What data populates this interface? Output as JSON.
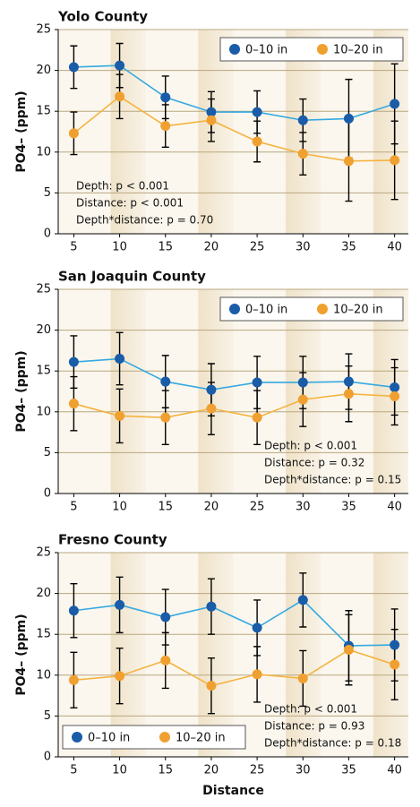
{
  "chart_data": [
    {
      "type": "line",
      "title": "Yolo County",
      "y_label": "PO4– (ppm)",
      "legend": "upper right",
      "annotation_position": "lower left",
      "x": [
        5,
        10,
        15,
        20,
        25,
        30,
        35,
        40
      ],
      "xlim": [
        3.3,
        41.5
      ],
      "xticks": [
        5,
        10,
        15,
        20,
        25,
        30,
        35,
        40
      ],
      "ylim": [
        0,
        25
      ],
      "yticks": [
        0,
        5,
        10,
        15,
        20,
        25
      ],
      "grid": true,
      "series": [
        {
          "name": "0–10 in",
          "color": "#1a5ca8",
          "line_color": "#35a9e0",
          "values": [
            20.4,
            20.6,
            16.7,
            14.9,
            14.9,
            13.9,
            14.1,
            15.9
          ],
          "errors": [
            2.6,
            2.7,
            2.6,
            2.5,
            2.6,
            2.6,
            4.8,
            4.9
          ]
        },
        {
          "name": "10–20 in",
          "color": "#f0a030",
          "line_color": "#f5b340",
          "values": [
            12.3,
            16.8,
            13.2,
            13.9,
            11.3,
            9.8,
            8.9,
            9.0
          ],
          "errors": [
            2.6,
            2.7,
            2.6,
            2.6,
            2.5,
            2.6,
            4.9,
            4.8
          ]
        }
      ],
      "annotations": [
        "Depth: p < 0.001",
        "Distance: p < 0.001",
        "Depth*distance: p = 0.70"
      ]
    },
    {
      "type": "line",
      "title": "San Joaquin County",
      "y_label": "PO4– (ppm)",
      "legend": "upper right",
      "annotation_position": "lower right",
      "x": [
        5,
        10,
        15,
        20,
        25,
        30,
        35,
        40
      ],
      "xlim": [
        3.3,
        41.5
      ],
      "xticks": [
        5,
        10,
        15,
        20,
        25,
        30,
        35,
        40
      ],
      "ylim": [
        0,
        25
      ],
      "yticks": [
        0,
        5,
        10,
        15,
        20,
        25
      ],
      "grid": true,
      "series": [
        {
          "name": "0–10 in",
          "color": "#1a5ca8",
          "line_color": "#35a9e0",
          "values": [
            16.1,
            16.5,
            13.7,
            12.7,
            13.6,
            13.6,
            13.7,
            13.0
          ],
          "errors": [
            3.2,
            3.2,
            3.2,
            3.2,
            3.2,
            3.2,
            3.4,
            3.4
          ]
        },
        {
          "name": "10–20 in",
          "color": "#f0a030",
          "line_color": "#f5b340",
          "values": [
            11.0,
            9.5,
            9.3,
            10.4,
            9.3,
            11.5,
            12.2,
            11.9
          ],
          "errors": [
            3.3,
            3.3,
            3.3,
            3.2,
            3.3,
            3.3,
            3.4,
            3.5
          ]
        }
      ],
      "annotations": [
        "Depth: p < 0.001",
        "Distance: p = 0.32",
        "Depth*distance: p = 0.15"
      ]
    },
    {
      "type": "line",
      "title": "Fresno County",
      "y_label": "PO4– (ppm)",
      "x_label": "Distance",
      "legend": "lower left",
      "annotation_position": "lower right",
      "x": [
        5,
        10,
        15,
        20,
        25,
        30,
        35,
        40
      ],
      "xlim": [
        3.3,
        41.5
      ],
      "xticks": [
        5,
        10,
        15,
        20,
        25,
        30,
        35,
        40
      ],
      "ylim": [
        0,
        25
      ],
      "yticks": [
        0,
        5,
        10,
        15,
        20,
        25
      ],
      "grid": true,
      "series": [
        {
          "name": "0–10 in",
          "color": "#1a5ca8",
          "line_color": "#35a9e0",
          "values": [
            17.9,
            18.6,
            17.1,
            18.4,
            15.8,
            19.2,
            13.6,
            13.7
          ],
          "errors": [
            3.3,
            3.4,
            3.4,
            3.4,
            3.4,
            3.3,
            4.3,
            4.4
          ]
        },
        {
          "name": "10–20 in",
          "color": "#f0a030",
          "line_color": "#f5b340",
          "values": [
            9.4,
            9.9,
            11.8,
            8.7,
            10.1,
            9.6,
            13.1,
            11.3
          ],
          "errors": [
            3.4,
            3.4,
            3.4,
            3.4,
            3.4,
            3.4,
            4.3,
            4.3
          ]
        }
      ],
      "annotations": [
        "Depth: p < 0.001",
        "Distance: p = 0.93",
        "Depth*distance: p = 0.18"
      ]
    }
  ]
}
